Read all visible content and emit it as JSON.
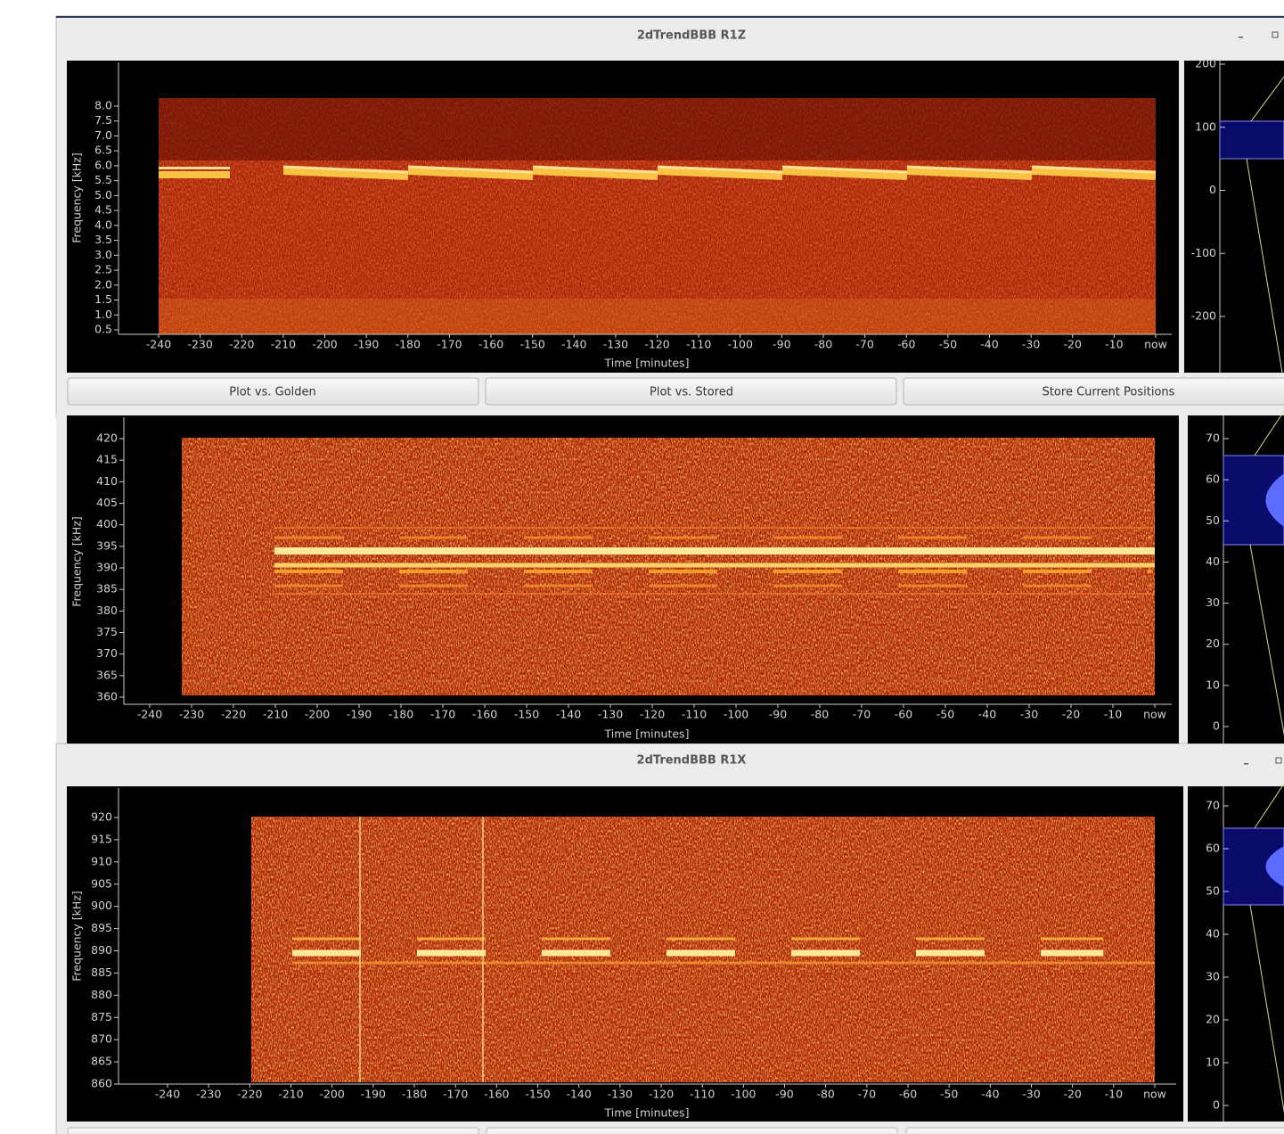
{
  "windows": [
    {
      "title": "2dTrendBBB R1Z"
    },
    {
      "title": "2dTrendBBB R1X"
    }
  ],
  "buttons": [
    "Plot vs. Golden",
    "Plot vs. Stored",
    "Store Current Positions"
  ],
  "plots": [
    {
      "ylabel": "Frequency [kHz]",
      "xlabel": "Time [minutes]",
      "yticks": [
        0.5,
        {
          "value": 1,
          "label": "1.0"
        },
        1.5,
        {
          "value": 2,
          "label": "2.0"
        },
        2.5,
        {
          "value": 3,
          "label": "3.0"
        },
        3.5,
        {
          "value": 4,
          "label": "4.0"
        },
        4.5,
        {
          "value": 5,
          "label": "5.0"
        },
        5.5,
        {
          "value": 6,
          "label": "6.0"
        },
        6.5,
        {
          "value": 7,
          "label": "7.0"
        },
        7.5,
        {
          "value": 8,
          "label": "8.0"
        }
      ],
      "xticks": [
        -240,
        -230,
        -220,
        -210,
        -200,
        -190,
        -180,
        -170,
        -160,
        -150,
        -140,
        -130,
        -120,
        -110,
        -100,
        -90,
        -80,
        -70,
        -60,
        -50,
        -40,
        -30,
        -20,
        -10,
        {
          "value": 0,
          "label": "now"
        }
      ],
      "side_ticks": [
        200,
        100,
        0,
        -100,
        -200
      ]
    },
    {
      "ylabel": "Frequency [kHz]",
      "xlabel": "Time [minutes]",
      "yticks": [
        360,
        365,
        370,
        375,
        380,
        385,
        390,
        395,
        400,
        405,
        410,
        415,
        420
      ],
      "xticks": [
        -240,
        -230,
        -220,
        -210,
        -200,
        -190,
        -180,
        -170,
        -160,
        -150,
        -140,
        -130,
        -120,
        -110,
        -100,
        -90,
        -80,
        -70,
        -60,
        -50,
        -40,
        -30,
        -20,
        -10,
        {
          "value": 0,
          "label": "now"
        }
      ],
      "side_ticks": [
        70,
        60,
        50,
        40,
        30,
        20,
        10,
        0
      ]
    },
    {
      "ylabel": "Frequency [kHz]",
      "xlabel": "Time [minutes]",
      "yticks": [
        860,
        865,
        870,
        875,
        880,
        885,
        890,
        895,
        900,
        905,
        910,
        915,
        920
      ],
      "xticks": [
        -240,
        -230,
        -220,
        -210,
        -200,
        -190,
        -180,
        -170,
        -160,
        -150,
        -140,
        -130,
        -120,
        -110,
        -100,
        -90,
        -80,
        -70,
        -60,
        -50,
        -40,
        -30,
        -20,
        -10,
        {
          "value": 0,
          "label": "now"
        }
      ],
      "side_ticks": [
        70,
        60,
        50,
        40,
        30,
        20,
        10,
        0
      ]
    }
  ]
}
